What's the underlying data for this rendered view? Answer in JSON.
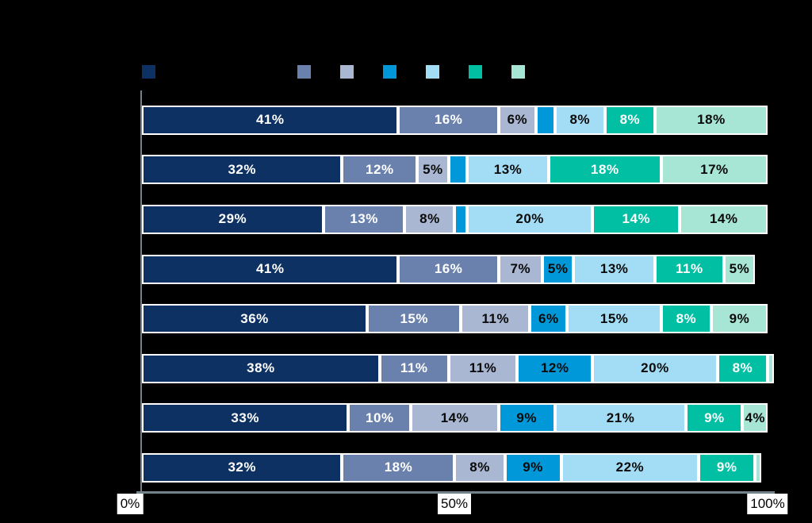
{
  "background_color": "#000000",
  "chart_data": {
    "type": "bar",
    "orientation": "horizontal_stacked",
    "title": "",
    "xlabel": "",
    "ylabel": "",
    "xlim": [
      0,
      100
    ],
    "x_ticks": [
      "0%",
      "50%",
      "100%"
    ],
    "grid": false,
    "legend_position": "top",
    "legend_swatch_colors": [
      "#0d3162",
      "#6981ac",
      "#a9b7d2",
      "#0098d8",
      "#a3ddf5",
      "#00bfa3",
      "#a7e5d4"
    ],
    "series_colors": [
      "#0d3162",
      "#6981ac",
      "#a9b7d2",
      "#0098d8",
      "#a3ddf5",
      "#00bfa3",
      "#a7e5d4"
    ],
    "segment_text_colors": [
      "#ffffff",
      "#ffffff",
      "#0a0a0a",
      "#0a0a0a",
      "#0a0a0a",
      "#ffffff",
      "#0a0a0a"
    ],
    "bar_border_color": "#ffffff",
    "axis_line_color": "#74828a",
    "tick_label_bg": "#ffffff",
    "tick_label_color": "#000000",
    "rows": [
      {
        "values": [
          41,
          16,
          6,
          3,
          8,
          8,
          18
        ],
        "labels": [
          "41%",
          "16%",
          "6%",
          "",
          "8%",
          "8%",
          "18%"
        ]
      },
      {
        "values": [
          32,
          12,
          5,
          3,
          13,
          18,
          17
        ],
        "labels": [
          "32%",
          "12%",
          "5%",
          "",
          "13%",
          "18%",
          "17%"
        ]
      },
      {
        "values": [
          29,
          13,
          8,
          2,
          20,
          14,
          14
        ],
        "labels": [
          "29%",
          "13%",
          "8%",
          "",
          "20%",
          "14%",
          "14%"
        ]
      },
      {
        "values": [
          41,
          16,
          7,
          5,
          13,
          11,
          5
        ],
        "labels": [
          "41%",
          "16%",
          "7%",
          "5%",
          "13%",
          "11%",
          "5%"
        ]
      },
      {
        "values": [
          36,
          15,
          11,
          6,
          15,
          8,
          9
        ],
        "labels": [
          "36%",
          "15%",
          "11%",
          "6%",
          "15%",
          "8%",
          "9%"
        ]
      },
      {
        "values": [
          38,
          11,
          11,
          12,
          20,
          8,
          1
        ],
        "labels": [
          "38%",
          "11%",
          "11%",
          "12%",
          "20%",
          "8%",
          ""
        ]
      },
      {
        "values": [
          33,
          10,
          14,
          9,
          21,
          9,
          4
        ],
        "labels": [
          "33%",
          "10%",
          "14%",
          "9%",
          "21%",
          "9%",
          "4%"
        ]
      },
      {
        "values": [
          32,
          18,
          8,
          9,
          22,
          9,
          1
        ],
        "labels": [
          "32%",
          "18%",
          "8%",
          "9%",
          "22%",
          "9%",
          ""
        ]
      }
    ]
  }
}
